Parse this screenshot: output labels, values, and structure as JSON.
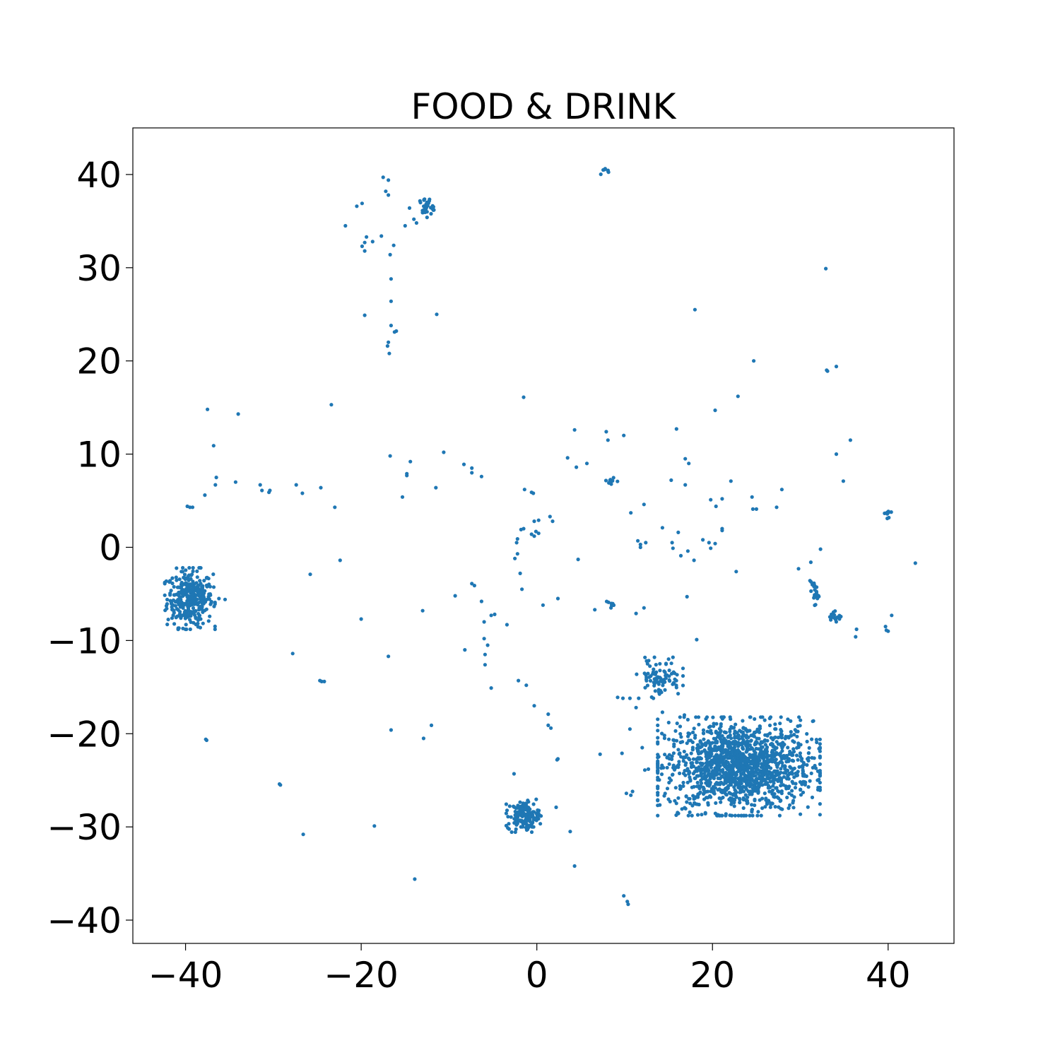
{
  "chart_data": {
    "type": "scatter",
    "title": "FOOD & DRINK",
    "xlabel": "",
    "ylabel": "",
    "xlim": [
      -46,
      47.5
    ],
    "ylim": [
      -42.5,
      45
    ],
    "xticks": [
      -40,
      -20,
      0,
      20,
      40
    ],
    "yticks": [
      -40,
      -30,
      -20,
      -10,
      0,
      10,
      20,
      30,
      40
    ],
    "grid": false,
    "marker_color": "#1f77b4",
    "clusters": [
      {
        "center": [
          -39.5,
          -5.5
        ],
        "spread": [
          1.3,
          1.5
        ],
        "count": 350
      },
      {
        "center": [
          23.0,
          -23.5
        ],
        "spread": [
          4.2,
          2.4
        ],
        "count": 1500
      },
      {
        "center": [
          14.0,
          -14.0
        ],
        "spread": [
          1.2,
          1.0
        ],
        "count": 80
      },
      {
        "center": [
          -1.5,
          -28.8
        ],
        "spread": [
          0.9,
          0.8
        ],
        "count": 140
      },
      {
        "center": [
          -12.6,
          36.5
        ],
        "spread": [
          0.4,
          0.5
        ],
        "count": 30
      },
      {
        "center": [
          31.6,
          -4.9
        ],
        "spread": [
          0.25,
          0.6
        ],
        "count": 25
      },
      {
        "center": [
          34.2,
          -7.5
        ],
        "spread": [
          0.4,
          0.3
        ],
        "count": 14
      },
      {
        "center": [
          7.7,
          40.3
        ],
        "spread": [
          0.3,
          0.2
        ],
        "count": 8
      },
      {
        "center": [
          8.3,
          7.2
        ],
        "spread": [
          0.4,
          0.3
        ],
        "count": 10
      },
      {
        "center": [
          8.4,
          -6.2
        ],
        "spread": [
          0.3,
          0.3
        ],
        "count": 8
      },
      {
        "center": [
          40.0,
          3.6
        ],
        "spread": [
          0.2,
          0.4
        ],
        "count": 8
      }
    ],
    "points": [
      [
        -17.5,
        39.7
      ],
      [
        -16.9,
        39.4
      ],
      [
        -17.2,
        38.2
      ],
      [
        -16.9,
        37.8
      ],
      [
        -20.5,
        36.6
      ],
      [
        -19.9,
        36.9
      ],
      [
        -21.8,
        34.5
      ],
      [
        -17.7,
        33.4
      ],
      [
        -19.4,
        33.3
      ],
      [
        -19.6,
        32.7
      ],
      [
        -18.7,
        32.8
      ],
      [
        -19.9,
        32.3
      ],
      [
        -16.3,
        32.4
      ],
      [
        -16.7,
        31.4
      ],
      [
        -19.6,
        31.8
      ],
      [
        -16.6,
        28.8
      ],
      [
        -16.6,
        26.4
      ],
      [
        -19.6,
        24.9
      ],
      [
        -11.4,
        25.0
      ],
      [
        -16.6,
        23.8
      ],
      [
        -16.2,
        23.1
      ],
      [
        -16.0,
        23.2
      ],
      [
        -16.9,
        22.0
      ],
      [
        -17.0,
        21.6
      ],
      [
        -16.8,
        20.8
      ],
      [
        -13.7,
        34.8
      ],
      [
        -14.0,
        35.2
      ],
      [
        -15.0,
        34.5
      ],
      [
        -14.5,
        36.4
      ],
      [
        32.9,
        29.9
      ],
      [
        18.0,
        25.5
      ],
      [
        24.7,
        20.0
      ],
      [
        33.0,
        19.0
      ],
      [
        33.1,
        18.9
      ],
      [
        34.1,
        19.4
      ],
      [
        -1.5,
        16.1
      ],
      [
        22.9,
        16.2
      ],
      [
        -37.5,
        14.8
      ],
      [
        -34.0,
        14.3
      ],
      [
        -23.4,
        15.3
      ],
      [
        20.3,
        14.7
      ],
      [
        4.3,
        12.6
      ],
      [
        15.9,
        12.7
      ],
      [
        7.9,
        12.4
      ],
      [
        8.1,
        11.5
      ],
      [
        9.9,
        12.0
      ],
      [
        35.7,
        11.5
      ],
      [
        -36.8,
        10.9
      ],
      [
        -16.7,
        9.8
      ],
      [
        -10.6,
        10.2
      ],
      [
        34.1,
        10.0
      ],
      [
        -14.4,
        9.2
      ],
      [
        -8.3,
        8.9
      ],
      [
        -7.4,
        8.5
      ],
      [
        -7.4,
        8.0
      ],
      [
        -6.3,
        7.6
      ],
      [
        -14.8,
        7.9
      ],
      [
        -14.8,
        7.7
      ],
      [
        3.5,
        9.6
      ],
      [
        5.7,
        9.0
      ],
      [
        4.5,
        8.6
      ],
      [
        17.3,
        9.0
      ],
      [
        16.9,
        9.5
      ],
      [
        15.3,
        7.2
      ],
      [
        -36.5,
        7.5
      ],
      [
        -36.6,
        6.7
      ],
      [
        -34.3,
        7.0
      ],
      [
        -31.5,
        6.7
      ],
      [
        -31.3,
        6.1
      ],
      [
        -30.5,
        5.9
      ],
      [
        -30.4,
        6.1
      ],
      [
        -27.4,
        6.7
      ],
      [
        -26.7,
        5.8
      ],
      [
        -24.6,
        6.4
      ],
      [
        -23.0,
        4.3
      ],
      [
        -15.3,
        5.4
      ],
      [
        -11.5,
        6.4
      ],
      [
        -37.8,
        5.6
      ],
      [
        -39.8,
        4.4
      ],
      [
        -39.5,
        4.3
      ],
      [
        -39.2,
        4.3
      ],
      [
        -1.4,
        6.2
      ],
      [
        -0.6,
        5.9
      ],
      [
        -0.4,
        5.8
      ],
      [
        16.9,
        6.7
      ],
      [
        19.8,
        5.1
      ],
      [
        21.1,
        5.2
      ],
      [
        22.1,
        7.1
      ],
      [
        20.4,
        4.4
      ],
      [
        24.5,
        5.4
      ],
      [
        24.6,
        4.1
      ],
      [
        25.0,
        4.1
      ],
      [
        27.3,
        4.3
      ],
      [
        27.9,
        6.2
      ],
      [
        34.9,
        7.1
      ],
      [
        12.2,
        4.6
      ],
      [
        10.7,
        3.7
      ],
      [
        -0.3,
        2.8
      ],
      [
        0.2,
        2.9
      ],
      [
        1.5,
        3.3
      ],
      [
        1.8,
        2.8
      ],
      [
        -1.8,
        1.9
      ],
      [
        -1.5,
        2.0
      ],
      [
        -0.6,
        1.4
      ],
      [
        -0.1,
        1.7
      ],
      [
        -0.3,
        1.2
      ],
      [
        0.2,
        1.5
      ],
      [
        14.3,
        2.1
      ],
      [
        16.1,
        1.6
      ],
      [
        21.1,
        2.0
      ],
      [
        21.1,
        1.8
      ],
      [
        -2.2,
        0.9
      ],
      [
        -2.3,
        0.5
      ],
      [
        11.5,
        0.7
      ],
      [
        11.8,
        0.3
      ],
      [
        11.8,
        0.0
      ],
      [
        12.4,
        0.5
      ],
      [
        15.4,
        0.5
      ],
      [
        15.5,
        -0.1
      ],
      [
        18.9,
        0.8
      ],
      [
        19.6,
        0.5
      ],
      [
        20.3,
        0.4
      ],
      [
        32.3,
        -0.2
      ],
      [
        -2.2,
        -0.7
      ],
      [
        16.4,
        -0.9
      ],
      [
        17.2,
        -0.4
      ],
      [
        19.8,
        -0.1
      ],
      [
        -2.5,
        -1.2
      ],
      [
        4.7,
        -1.3
      ],
      [
        -22.4,
        -1.4
      ],
      [
        17.9,
        -1.4
      ],
      [
        31.2,
        -1.6
      ],
      [
        43.1,
        -1.7
      ],
      [
        -25.8,
        -2.9
      ],
      [
        -1.9,
        -2.8
      ],
      [
        22.7,
        -2.6
      ],
      [
        29.8,
        -2.3
      ],
      [
        -1.7,
        -4.5
      ],
      [
        -7.4,
        -3.9
      ],
      [
        -7.1,
        -4.1
      ],
      [
        -9.3,
        -5.2
      ],
      [
        17.1,
        -5.3
      ],
      [
        2.4,
        -5.5
      ],
      [
        -36.2,
        -5.5
      ],
      [
        -35.5,
        -5.6
      ],
      [
        -6.3,
        -5.8
      ],
      [
        -5.2,
        -7.3
      ],
      [
        -4.8,
        -7.2
      ],
      [
        -6.0,
        -8.0
      ],
      [
        -3.4,
        -8.3
      ],
      [
        0.7,
        -6.2
      ],
      [
        6.6,
        -6.7
      ],
      [
        12.2,
        -6.5
      ],
      [
        11.3,
        -7.1
      ],
      [
        -13.0,
        -6.8
      ],
      [
        -20.0,
        -7.7
      ],
      [
        39.7,
        -8.5
      ],
      [
        39.8,
        -8.9
      ],
      [
        40.0,
        -9.0
      ],
      [
        40.4,
        -7.3
      ],
      [
        36.4,
        -8.8
      ],
      [
        36.3,
        -9.6
      ],
      [
        18.2,
        -9.9
      ],
      [
        -6.0,
        -9.8
      ],
      [
        -5.6,
        -10.5
      ],
      [
        -8.2,
        -11.0
      ],
      [
        -5.9,
        -11.5
      ],
      [
        -16.9,
        -11.7
      ],
      [
        -27.8,
        -11.4
      ],
      [
        -5.9,
        -12.6
      ],
      [
        -24.7,
        -14.3
      ],
      [
        -24.5,
        -14.4
      ],
      [
        -24.2,
        -14.4
      ],
      [
        -2.1,
        -14.3
      ],
      [
        -1.2,
        -14.8
      ],
      [
        -5.2,
        -15.1
      ],
      [
        -0.3,
        -17.0
      ],
      [
        1.3,
        -17.9
      ],
      [
        1.3,
        -19.1
      ],
      [
        1.6,
        -19.4
      ],
      [
        -16.6,
        -19.6
      ],
      [
        -12.0,
        -19.1
      ],
      [
        -12.9,
        -20.5
      ],
      [
        -37.7,
        -20.6
      ],
      [
        -37.6,
        -20.7
      ],
      [
        2.3,
        -22.8
      ],
      [
        2.4,
        -22.7
      ],
      [
        7.2,
        -22.2
      ],
      [
        9.7,
        -22.1
      ],
      [
        12.3,
        -23.9
      ],
      [
        12.7,
        -23.8
      ],
      [
        -2.6,
        -24.3
      ],
      [
        -29.3,
        -25.4
      ],
      [
        -29.2,
        -25.5
      ],
      [
        10.2,
        -26.4
      ],
      [
        10.7,
        -26.6
      ],
      [
        10.9,
        -26.2
      ],
      [
        2.2,
        -27.9
      ],
      [
        -18.5,
        -29.9
      ],
      [
        3.8,
        -30.5
      ],
      [
        -26.6,
        -30.8
      ],
      [
        4.3,
        -34.2
      ],
      [
        -13.9,
        -35.6
      ],
      [
        9.9,
        -37.4
      ],
      [
        10.3,
        -38.0
      ],
      [
        10.4,
        -38.3
      ],
      [
        9.2,
        -16.1
      ],
      [
        9.8,
        -16.2
      ],
      [
        10.6,
        -16.2
      ],
      [
        11.6,
        -16.2
      ],
      [
        11.3,
        -17.2
      ],
      [
        10.6,
        -19.5
      ],
      [
        12.0,
        -21.5
      ],
      [
        14.3,
        -17.7
      ],
      [
        16.8,
        -18.0
      ],
      [
        13.6,
        -13.4
      ],
      [
        12.5,
        -12.2
      ],
      [
        12.6,
        -12.5
      ],
      [
        15.0,
        -12.0
      ],
      [
        15.5,
        -11.8
      ]
    ]
  }
}
